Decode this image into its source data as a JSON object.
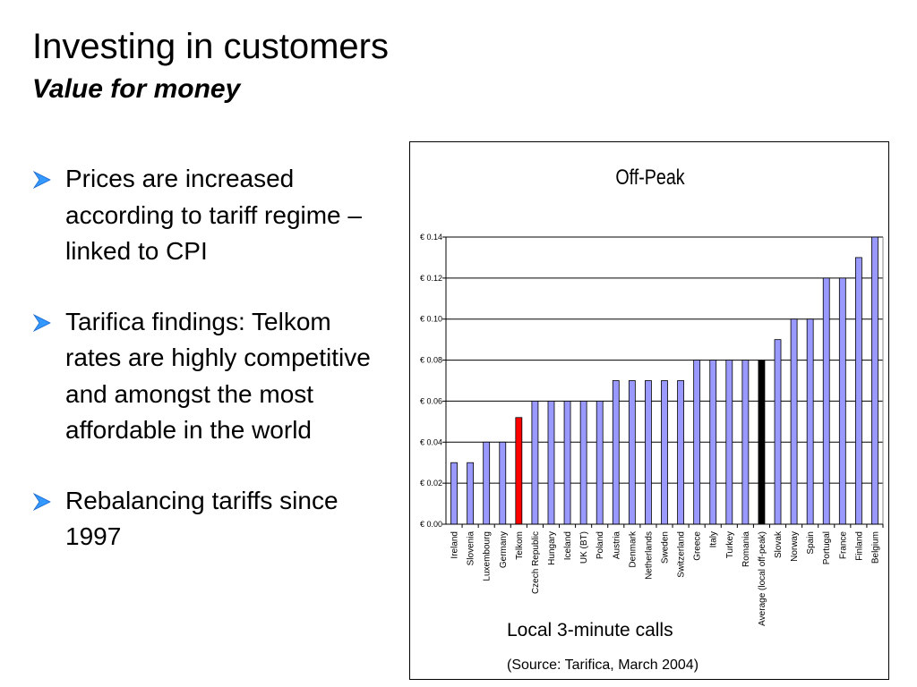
{
  "slide": {
    "title": "Investing in customers",
    "subtitle": "Value for money"
  },
  "bullets": [
    {
      "text": "Prices are increased according to tariff regime – linked to CPI"
    },
    {
      "text": "Tarifica findings: Telkom rates are highly competitive and amongst the most affordable in the world"
    },
    {
      "text": "Rebalancing tariffs since 1997"
    }
  ],
  "bullet_icon": "arrow-bullet-icon",
  "colors": {
    "bar": "#9999ff",
    "highlight": "#ff0000",
    "average": "#000000",
    "bullet": "#3399ff"
  },
  "captions": {
    "main": "Local 3-minute calls",
    "source": "(Source: Tarifica, March 2004)"
  },
  "chart_data": {
    "type": "bar",
    "title": "Off-Peak",
    "categories": [
      "Ireland",
      "Slovenia",
      "Luxembourg",
      "Germany",
      "Telkom",
      "Czech Republic",
      "Hungary",
      "Iceland",
      "UK (BT)",
      "Poland",
      "Austria",
      "Denmark",
      "Netherlands",
      "Sweden",
      "Switzerland",
      "Greece",
      "Italy",
      "Turkey",
      "Romania",
      "Average (local off-peak)",
      "Slovak",
      "Norway",
      "Spain",
      "Portugal",
      "France",
      "Finland",
      "Belgium"
    ],
    "values": [
      0.03,
      0.03,
      0.04,
      0.04,
      0.052,
      0.06,
      0.06,
      0.06,
      0.06,
      0.06,
      0.07,
      0.07,
      0.07,
      0.07,
      0.07,
      0.08,
      0.08,
      0.08,
      0.08,
      0.08,
      0.09,
      0.1,
      0.1,
      0.12,
      0.12,
      0.13,
      0.14
    ],
    "highlight": {
      "Telkom": "highlight",
      "Average (local off-peak)": "average"
    },
    "ylim": [
      0,
      0.14
    ],
    "yticks": [
      "€ 0.00",
      "€ 0.02",
      "€ 0.04",
      "€ 0.06",
      "€ 0.08",
      "€ 0.10",
      "€ 0.12",
      "€ 0.14"
    ],
    "grid": true,
    "xlabel": "",
    "ylabel": ""
  }
}
